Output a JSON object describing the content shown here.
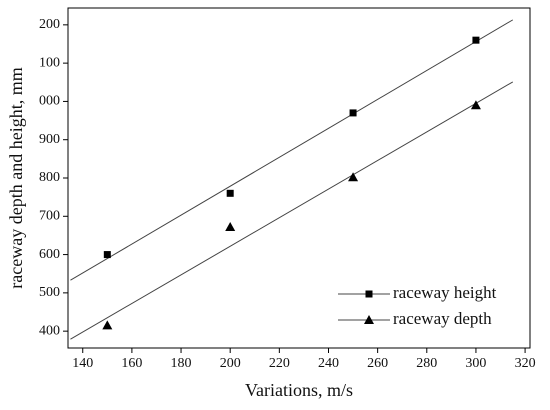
{
  "chart_data": {
    "type": "scatter",
    "xlabel": "Variations, m/s",
    "ylabel": "raceway depth and height, mm",
    "xlim": [
      134,
      322
    ],
    "ylim": [
      356,
      1244
    ],
    "xticks": [
      140,
      160,
      180,
      200,
      220,
      240,
      260,
      280,
      300,
      320
    ],
    "yticks": [
      400,
      500,
      600,
      700,
      800,
      900,
      {
        "value": 1000,
        "label": "000"
      },
      {
        "value": 1100,
        "label": "100"
      },
      {
        "value": 1200,
        "label": "200"
      }
    ],
    "x": [
      150,
      200,
      250,
      300
    ],
    "fit_x": [
      135,
      315
    ],
    "legend": "lower right",
    "series": [
      {
        "name": "raceway height",
        "color": "#000000",
        "marker": "square",
        "values": [
          600,
          760,
          970,
          1160
        ],
        "fit": [
          533,
          1213
        ]
      },
      {
        "name": "raceway depth",
        "color": "#000000",
        "marker": "triangle",
        "values": [
          415,
          672,
          802,
          990
        ],
        "fit": [
          379,
          1051
        ]
      }
    ]
  }
}
